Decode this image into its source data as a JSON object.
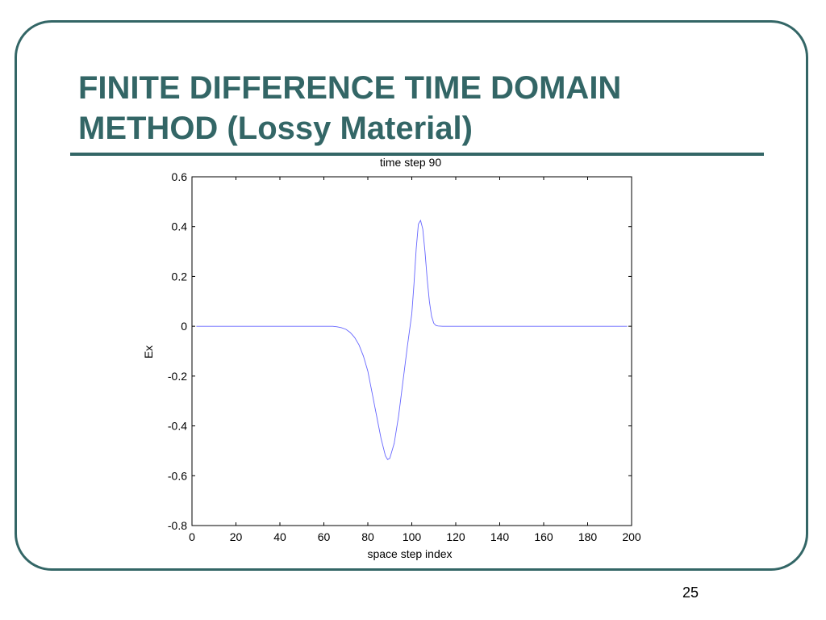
{
  "slide": {
    "title": "FINITE DIFFERENCE TIME DOMAIN\nMETHOD (Lossy Material)",
    "page_number": "25",
    "colors": {
      "accent": "#336666",
      "series_line": "#6666ff"
    }
  },
  "chart_data": {
    "type": "line",
    "title": "time step 90",
    "xlabel": "space step index",
    "ylabel": "Ex",
    "xlim": [
      0,
      200
    ],
    "ylim": [
      -0.8,
      0.6
    ],
    "xticks": [
      0,
      20,
      40,
      60,
      80,
      100,
      120,
      140,
      160,
      180,
      200
    ],
    "xtick_labels": [
      "0",
      "20",
      "40",
      "60",
      "80",
      "100",
      "120",
      "140",
      "160",
      "180",
      "200"
    ],
    "yticks": [
      0.6,
      0.4,
      0.2,
      0,
      -0.2,
      -0.4,
      -0.6,
      -0.8
    ],
    "ytick_labels": [
      "0.6",
      "0.4",
      "0.2",
      "0",
      "-0.2",
      "-0.4",
      "-0.6",
      "-0.8"
    ],
    "grid": false,
    "series": [
      {
        "x": [
          2,
          10,
          20,
          30,
          40,
          50,
          60,
          64,
          66,
          68,
          70,
          72,
          74,
          76,
          78,
          80,
          82,
          84,
          86,
          88,
          89,
          90,
          92,
          94,
          96,
          98,
          100,
          101,
          102,
          103,
          104,
          105,
          106,
          107,
          108,
          109,
          110,
          111,
          112,
          114,
          120,
          140,
          160,
          180,
          198
        ],
        "y": [
          0,
          0,
          0,
          0,
          0,
          0,
          0,
          0,
          -0.002,
          -0.006,
          -0.012,
          -0.025,
          -0.045,
          -0.075,
          -0.12,
          -0.18,
          -0.27,
          -0.36,
          -0.45,
          -0.52,
          -0.535,
          -0.53,
          -0.47,
          -0.36,
          -0.22,
          -0.08,
          0.05,
          0.17,
          0.31,
          0.41,
          0.425,
          0.39,
          0.3,
          0.19,
          0.1,
          0.04,
          0.012,
          0.003,
          0.001,
          0,
          0,
          0,
          0,
          0,
          0
        ]
      }
    ]
  }
}
